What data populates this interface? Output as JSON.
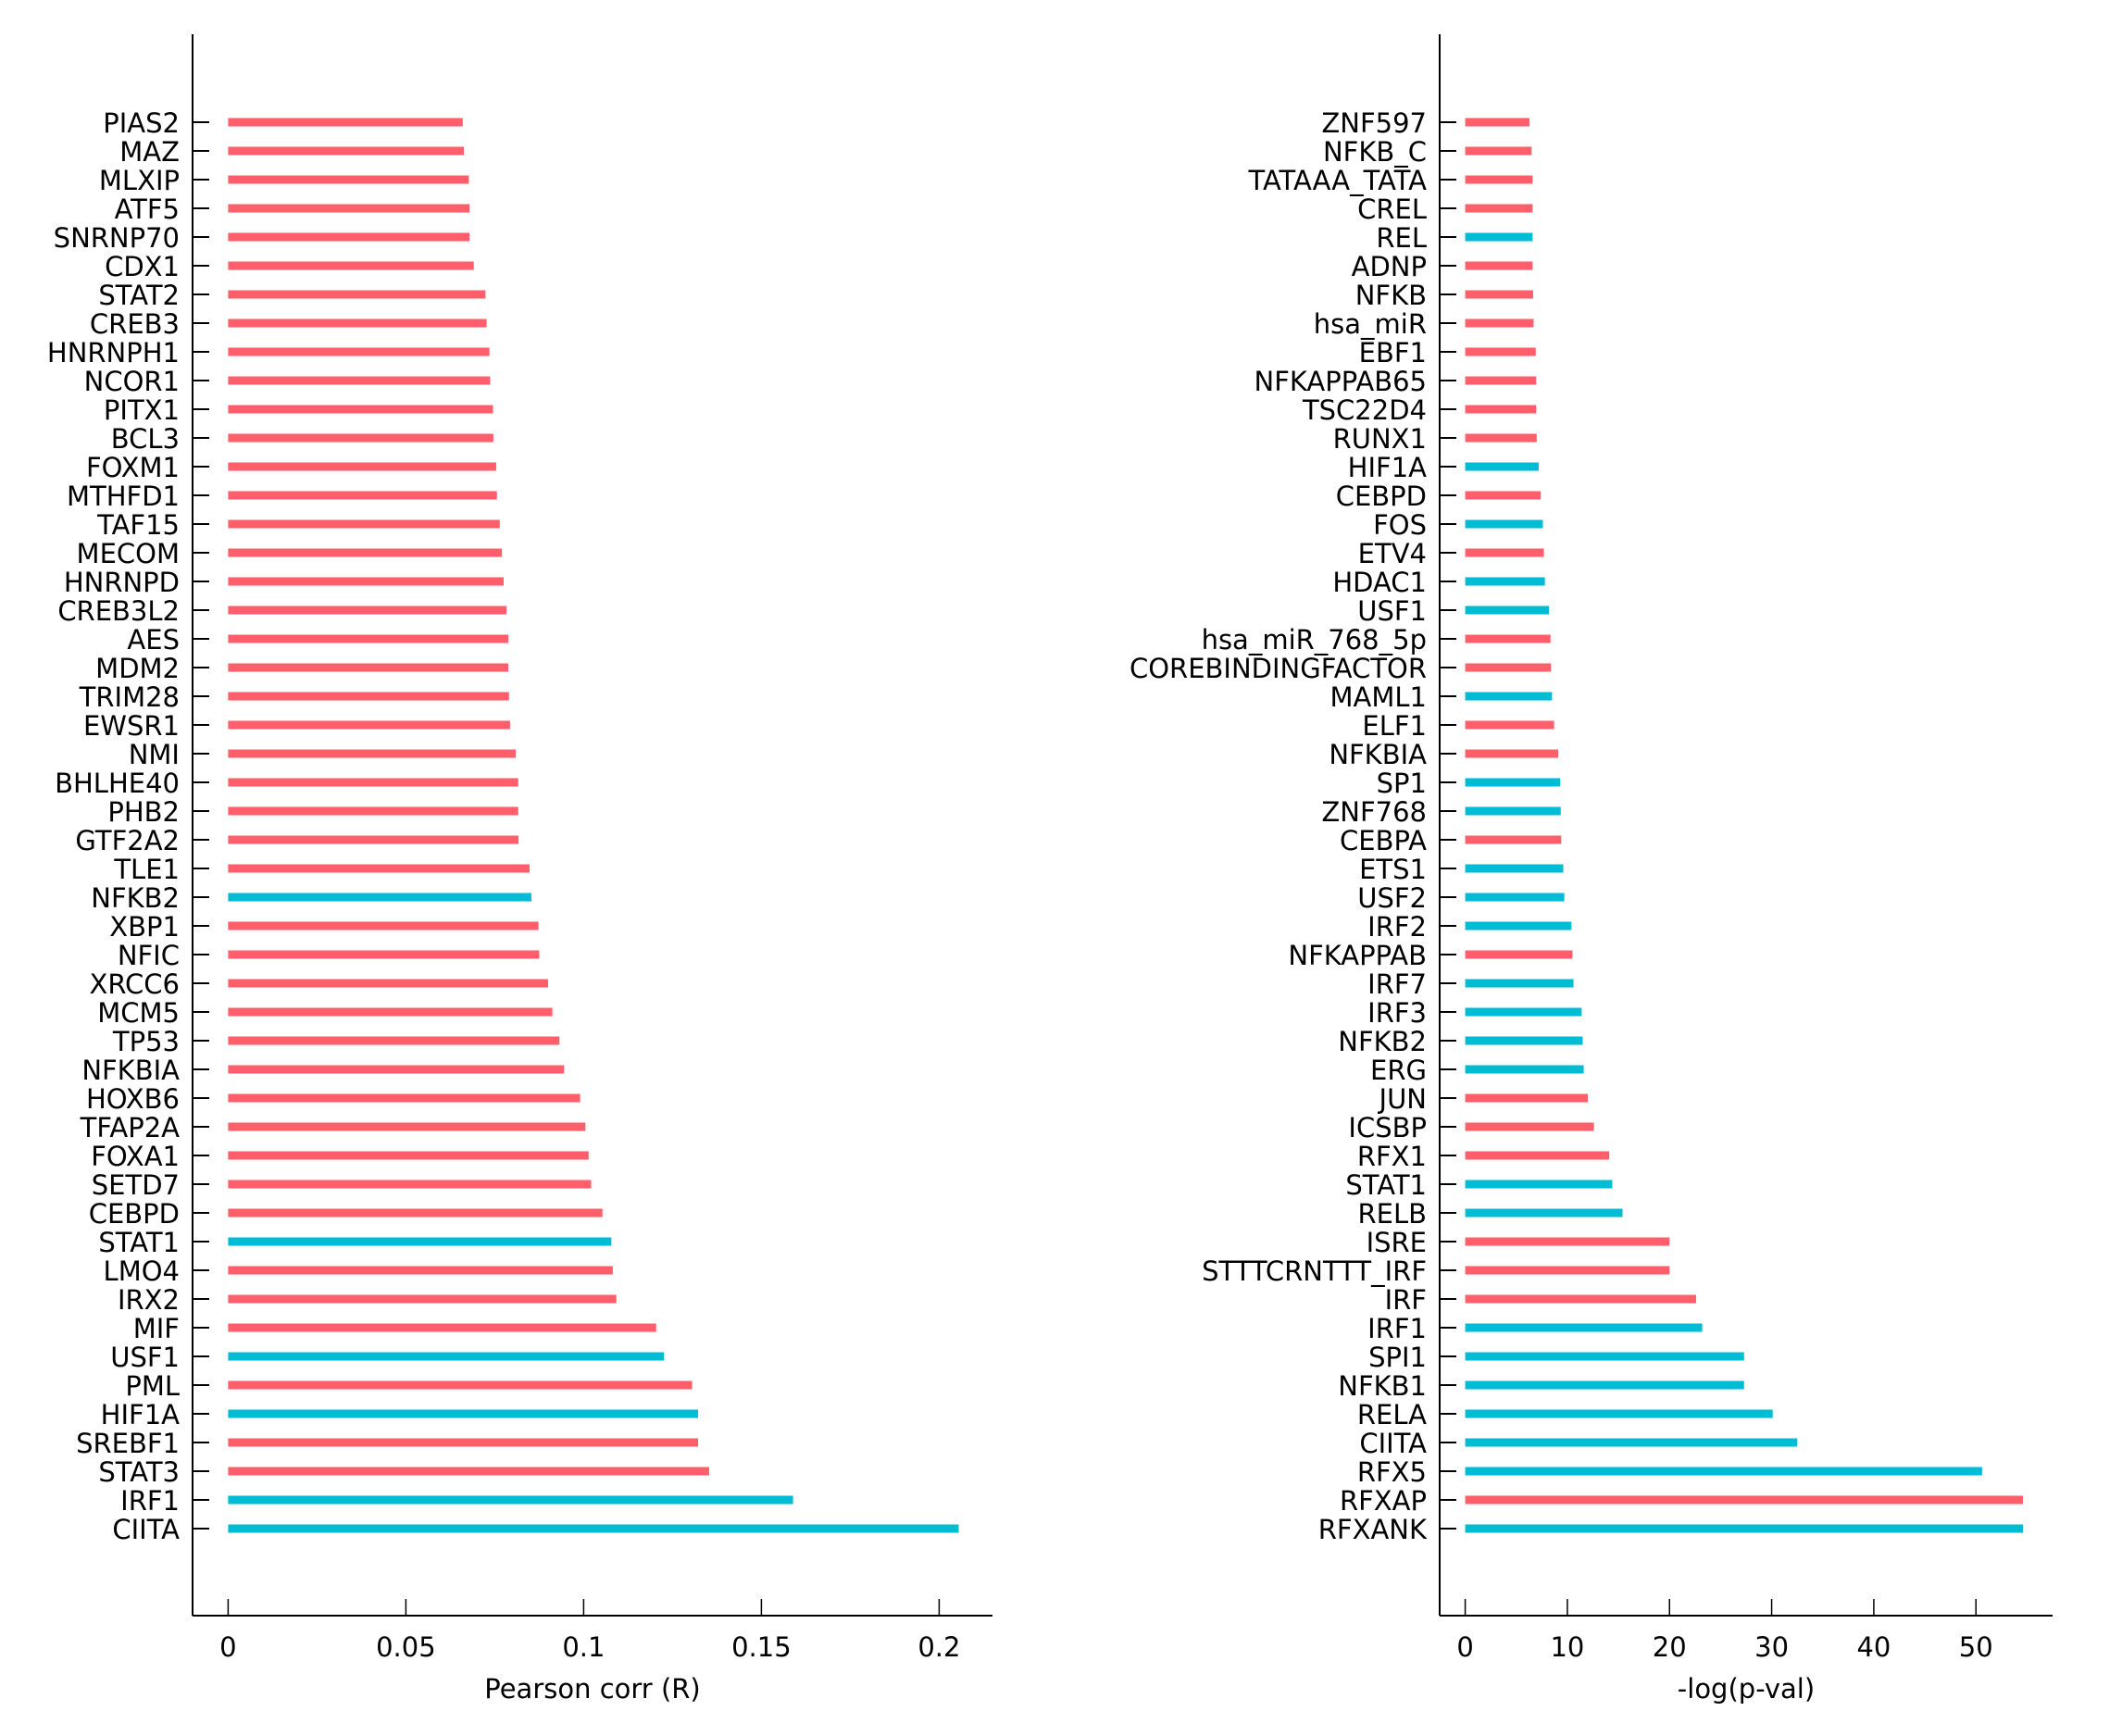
{
  "colors": {
    "positive": "#FF5E6A",
    "negative": "#00BCD4",
    "axis": "#000000"
  },
  "chart_data": [
    {
      "type": "bar",
      "orientation": "horizontal",
      "title": "",
      "xlabel": "Pearson corr (R)",
      "ylabel": "",
      "xlim": [
        -0.01,
        0.215
      ],
      "xticks": [
        0,
        0.05,
        0.1,
        0.15,
        0.2
      ],
      "xtick_labels": [
        "0",
        "0.05",
        "0.1",
        "0.15",
        "0.2"
      ],
      "grid": false,
      "legend": "none",
      "categories": [
        "PIAS2",
        "MAZ",
        "MLXIP",
        "ATF5",
        "SNRNP70",
        "CDX1",
        "STAT2",
        "CREB3",
        "HNRNPH1",
        "NCOR1",
        "PITX1",
        "BCL3",
        "FOXM1",
        "MTHFD1",
        "TAF15",
        "MECOM",
        "HNRNPD",
        "CREB3L2",
        "AES",
        "MDM2",
        "TRIM28",
        "EWSR1",
        "NMI",
        "BHLHE40",
        "PHB2",
        "GTF2A2",
        "TLE1",
        "NFKB2",
        "XBP1",
        "NFIC",
        "XRCC6",
        "MCM5",
        "TP53",
        "NFKBIA",
        "HOXB6",
        "TFAP2A",
        "FOXA1",
        "SETD7",
        "CEBPD",
        "STAT1",
        "LMO4",
        "IRX2",
        "MIF",
        "USF1",
        "PML",
        "HIF1A",
        "SREBF1",
        "STAT3",
        "IRF1",
        "CIITA"
      ],
      "values": [
        0.066,
        0.0663,
        0.0677,
        0.0679,
        0.0679,
        0.0691,
        0.0724,
        0.0727,
        0.0735,
        0.0737,
        0.0745,
        0.0746,
        0.0754,
        0.0756,
        0.0764,
        0.077,
        0.0775,
        0.0783,
        0.0788,
        0.0788,
        0.079,
        0.0793,
        0.0809,
        0.0816,
        0.0816,
        0.0817,
        0.0848,
        0.0853,
        0.0873,
        0.0875,
        0.09,
        0.0912,
        0.0932,
        0.0945,
        0.099,
        0.1005,
        0.1014,
        0.1021,
        0.1053,
        0.1078,
        0.1082,
        0.1092,
        0.1204,
        0.1226,
        0.1305,
        0.1322,
        0.1322,
        0.1353,
        0.1589,
        0.2055
      ],
      "highlight": [
        false,
        false,
        false,
        false,
        false,
        false,
        false,
        false,
        false,
        false,
        false,
        false,
        false,
        false,
        false,
        false,
        false,
        false,
        false,
        false,
        false,
        false,
        false,
        false,
        false,
        false,
        false,
        true,
        false,
        false,
        false,
        false,
        false,
        false,
        false,
        false,
        false,
        false,
        false,
        true,
        false,
        false,
        false,
        true,
        false,
        true,
        false,
        false,
        true,
        true
      ]
    },
    {
      "type": "bar",
      "orientation": "horizontal",
      "title": "",
      "xlabel": "-log(p-val)",
      "ylabel": "",
      "xlim": [
        -2.5,
        57.5
      ],
      "xticks": [
        0,
        10,
        20,
        30,
        40,
        50
      ],
      "xtick_labels": [
        "0",
        "10",
        "20",
        "30",
        "40",
        "50"
      ],
      "grid": false,
      "legend": "none",
      "categories": [
        "ZNF597",
        "NFKB_C",
        "TATAAA_TATA",
        "CREL",
        "REL",
        "ADNP",
        "NFKB",
        "hsa_miR",
        "EBF1",
        "NFKAPPAB65",
        "TSC22D4",
        "RUNX1",
        "HIF1A",
        "CEBPD",
        "FOS",
        "ETV4",
        "HDAC1",
        "USF1",
        "hsa_miR_768_5p",
        "COREBINDINGFACTOR",
        "MAML1",
        "ELF1",
        "NFKBIA",
        "SP1",
        "ZNF768",
        "CEBPA",
        "ETS1",
        "USF2",
        "IRF2",
        "NFKAPPAB",
        "IRF7",
        "IRF3",
        "NFKB2",
        "ERG",
        "JUN",
        "ICSBP",
        "RFX1",
        "STAT1",
        "RELB",
        "ISRE",
        "STTTCRNTTT_IRF",
        "IRF",
        "IRF1",
        "SPI1",
        "NFKB1",
        "RELA",
        "CIITA",
        "RFX5",
        "RFXAP",
        "RFXANK"
      ],
      "values": [
        6.3,
        6.5,
        6.6,
        6.6,
        6.6,
        6.6,
        6.65,
        6.7,
        6.9,
        6.95,
        6.95,
        7.0,
        7.2,
        7.4,
        7.6,
        7.7,
        7.8,
        8.2,
        8.35,
        8.4,
        8.5,
        8.7,
        9.1,
        9.3,
        9.35,
        9.4,
        9.6,
        9.7,
        10.4,
        10.5,
        10.6,
        11.4,
        11.5,
        11.6,
        12.0,
        12.6,
        14.1,
        14.4,
        15.4,
        20.0,
        20.0,
        22.6,
        23.2,
        27.3,
        27.3,
        30.1,
        32.5,
        50.6,
        54.6,
        54.6
      ],
      "highlight": [
        false,
        false,
        false,
        false,
        true,
        false,
        false,
        false,
        false,
        false,
        false,
        false,
        true,
        false,
        true,
        false,
        true,
        true,
        false,
        false,
        true,
        false,
        false,
        true,
        true,
        false,
        true,
        true,
        true,
        false,
        true,
        true,
        true,
        true,
        false,
        false,
        false,
        true,
        true,
        false,
        false,
        false,
        true,
        true,
        true,
        true,
        true,
        true,
        false,
        true
      ]
    }
  ]
}
